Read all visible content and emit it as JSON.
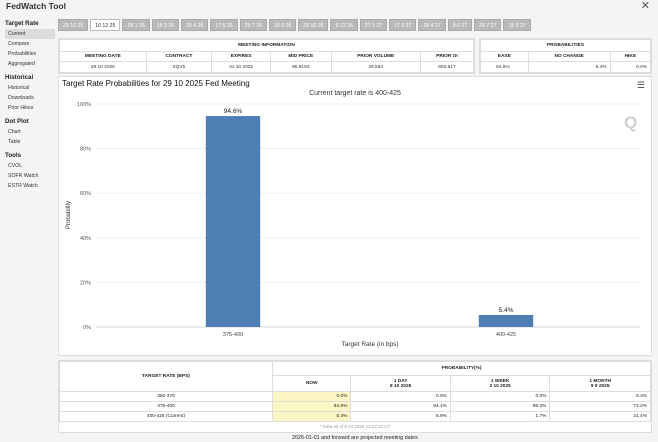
{
  "app_title": "FedWatch Tool",
  "tabs": [
    "29 10 25",
    "10 12 25",
    "28 1 26",
    "18 3 26",
    "29 4 26",
    "17 6 26",
    "29 7 26",
    "16 9 26",
    "28 10 26",
    "9 12 26",
    "27 1 27",
    "17 3 27",
    "28 4 27",
    "9 6 27",
    "28 7 27",
    "15 9 27"
  ],
  "active_tab": 1,
  "sidebar": {
    "sections": [
      {
        "title": "Target Rate",
        "items": [
          "Current",
          "Compare",
          "Probabilities",
          "Aggregated"
        ]
      },
      {
        "title": "Historical",
        "items": [
          "Historical",
          "Downloads",
          "Prior Hikes"
        ]
      },
      {
        "title": "Dot Plot",
        "items": [
          "Chart",
          "Table"
        ]
      },
      {
        "title": "Tools",
        "items": [
          "CVOL",
          "SOFR Watch",
          "ESTR Watch"
        ]
      }
    ]
  },
  "meeting_info": {
    "title": "MEETING INFORMATION",
    "headers": [
      "MEETING DATE",
      "CONTRACT",
      "EXPIRES",
      "MID PRICE",
      "PRIOR VOLUME",
      "PRIOR OI"
    ],
    "values": [
      "29 10 2025",
      "ZQV5",
      "31 10 2025",
      "95.9163",
      "29,563",
      "683,517"
    ]
  },
  "probabilities": {
    "title": "PROBABILITIES",
    "headers": [
      "EASE",
      "NO CHANGE",
      "HIKE"
    ],
    "values": [
      "94.6%",
      "5.4%",
      "0.0%"
    ]
  },
  "chart_data": {
    "type": "bar",
    "title": "Target Rate Probabilities for 29 10 2025 Fed Meeting",
    "subtitle": "Current target rate is 400-425",
    "categories": [
      "375-400",
      "400-425"
    ],
    "values": [
      94.6,
      5.4
    ],
    "value_labels": [
      "94.6%",
      "5.4%"
    ],
    "xlabel": "Target Rate (in bps)",
    "ylabel": "Probability",
    "ylim": [
      0,
      100
    ],
    "yticks": [
      "0%",
      "20%",
      "40%",
      "60%",
      "80%",
      "100%"
    ],
    "bar_color": "#4f7eb5"
  },
  "bottom_table": {
    "col1_header": "TARGET RATE (BPS)",
    "prob_header": "PROBABILITY(%)",
    "sub_headers": [
      {
        "line1": "NOW",
        "line2": ""
      },
      {
        "line1": "1 DAY",
        "line2": "8 10 2025"
      },
      {
        "line1": "1 WEEK",
        "line2": "2 10 2025"
      },
      {
        "line1": "1 MONTH",
        "line2": "9 9 2025"
      }
    ],
    "rows": [
      {
        "label": "350-375",
        "values": [
          "0.0%",
          "0.0%",
          "0.0%",
          "5.4%"
        ]
      },
      {
        "label": "375-400",
        "values": [
          "94.6%",
          "94.1%",
          "98.3%",
          "73.2%"
        ]
      },
      {
        "label": "400-425 (Current)",
        "values": [
          "5.4%",
          "5.9%",
          "1.7%",
          "21.4%"
        ]
      }
    ],
    "data_note": "* Data as of 9 10 2025 12:22:21 CT"
  },
  "footnote": "2026-01-01 and forward are projected meeting dates"
}
